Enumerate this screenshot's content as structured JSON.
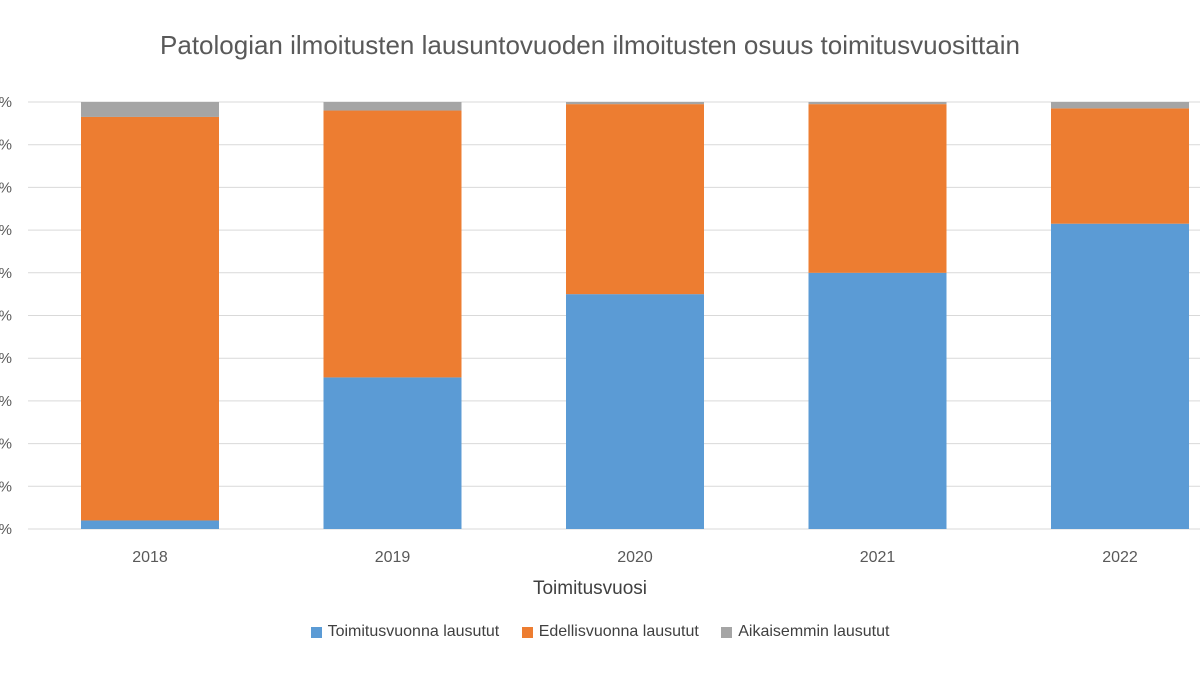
{
  "chart_data": {
    "type": "bar",
    "stacked": true,
    "percent_stacked": true,
    "title": "Patologian ilmoitusten lausuntovuoden ilmoitusten osuus toimitusvuosittain",
    "xlabel": "Toimitusvuosi",
    "ylabel": "",
    "ylim": [
      0,
      100
    ],
    "y_tick_labels": [
      "%",
      "%",
      "%",
      "%",
      "%",
      "%",
      "%",
      "%",
      "%",
      "%",
      "%"
    ],
    "categories": [
      "2018",
      "2019",
      "2020",
      "2021",
      "2022"
    ],
    "series": [
      {
        "name": "Toimitusvuonna lausutut",
        "color": "#5B9BD5",
        "values": [
          2,
          35.5,
          55,
          60,
          71.5
        ]
      },
      {
        "name": "Edellisvuonna lausutut",
        "color": "#ED7D31",
        "values": [
          94.5,
          62.5,
          44.5,
          39.5,
          27
        ]
      },
      {
        "name": "Aikaisemmin lausutut",
        "color": "#A5A5A5",
        "values": [
          3.5,
          2,
          0.5,
          0.5,
          1.5
        ]
      }
    ],
    "grid": true,
    "legend_position": "bottom"
  }
}
